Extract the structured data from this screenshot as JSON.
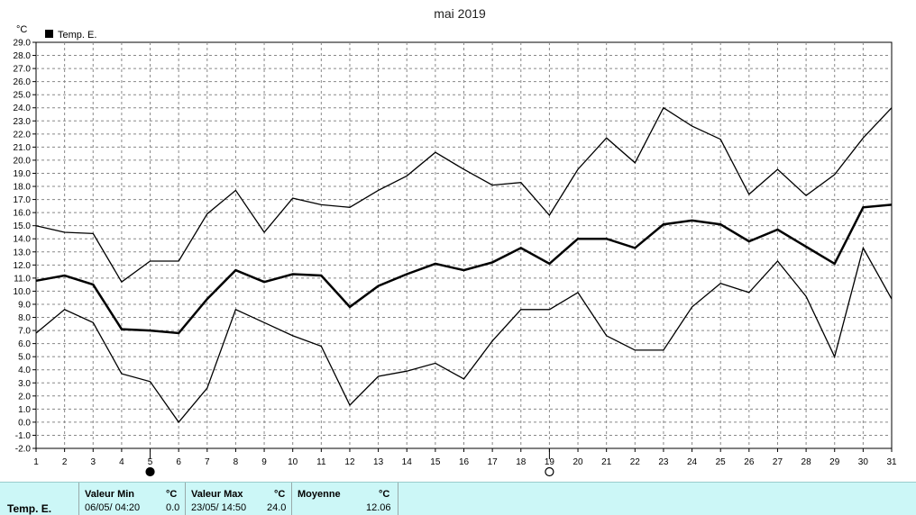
{
  "chart_data": {
    "type": "line",
    "title": "mai 2019",
    "ylabel": "°C",
    "xlabel": "",
    "ylim": [
      -2.0,
      29.0
    ],
    "xlim": [
      1,
      31
    ],
    "grid": true,
    "legend_position": "top-left",
    "x": [
      1,
      2,
      3,
      4,
      5,
      6,
      7,
      8,
      9,
      10,
      11,
      12,
      13,
      14,
      15,
      16,
      17,
      18,
      19,
      20,
      21,
      22,
      23,
      24,
      25,
      26,
      27,
      28,
      29,
      30,
      31
    ],
    "x_tick_labels": [
      "1",
      "2",
      "3",
      "4",
      "5",
      "6",
      "7",
      "8",
      "9",
      "10",
      "11",
      "12",
      "13",
      "14",
      "15",
      "16",
      "17",
      "18",
      "19",
      "20",
      "21",
      "22",
      "23",
      "24",
      "25",
      "26",
      "27",
      "28",
      "29",
      "30",
      "31"
    ],
    "y_tick_labels": [
      "29.0",
      "28.0",
      "27.0",
      "26.0",
      "25.0",
      "24.0",
      "23.0",
      "22.0",
      "21.0",
      "20.0",
      "19.0",
      "18.0",
      "17.0",
      "16.0",
      "15.0",
      "14.0",
      "13.0",
      "12.0",
      "11.0",
      "10.0",
      "9.0",
      "8.0",
      "7.0",
      "6.0",
      "5.0",
      "4.0",
      "3.0",
      "2.0",
      "1.0",
      "0.0",
      "-1.0",
      "-2.0"
    ],
    "series": [
      {
        "name": "Temp. E.",
        "role": "max",
        "color": "#000000",
        "values": [
          15.0,
          14.5,
          14.4,
          10.7,
          12.3,
          12.3,
          15.9,
          17.7,
          14.5,
          17.1,
          16.6,
          16.4,
          17.7,
          18.8,
          20.6,
          19.3,
          18.1,
          18.3,
          15.8,
          19.3,
          21.7,
          19.8,
          24.0,
          22.6,
          21.6,
          17.4,
          19.3,
          17.3,
          18.9,
          21.7,
          24.0
        ]
      },
      {
        "name": "Temp. E.",
        "role": "mean",
        "color": "#000000",
        "values": [
          10.8,
          11.2,
          10.5,
          7.1,
          7.0,
          6.8,
          9.4,
          11.6,
          10.7,
          11.3,
          11.2,
          8.8,
          10.4,
          11.3,
          12.1,
          11.6,
          12.2,
          13.3,
          12.1,
          14.0,
          14.0,
          13.3,
          15.1,
          15.4,
          15.1,
          13.8,
          14.7,
          13.4,
          12.1,
          16.4,
          16.6
        ]
      },
      {
        "name": "Temp. E.",
        "role": "min",
        "color": "#000000",
        "values": [
          6.8,
          8.6,
          7.6,
          3.7,
          3.1,
          0.0,
          2.6,
          8.6,
          7.6,
          6.6,
          5.8,
          1.3,
          3.5,
          3.9,
          4.5,
          3.3,
          6.2,
          8.6,
          8.6,
          9.9,
          6.6,
          5.5,
          5.5,
          8.8,
          10.6,
          9.9,
          12.3,
          9.6,
          5.0,
          13.3,
          9.4
        ]
      }
    ],
    "legend": [
      {
        "label": "Temp. E.",
        "color": "#000000"
      }
    ],
    "moon_phases": [
      {
        "day": 5,
        "phase": "new-moon"
      },
      {
        "day": 19,
        "phase": "full-moon"
      }
    ]
  },
  "stats": {
    "row_label": "Temp. E.",
    "min_header": "Valeur Min",
    "max_header": "Valeur Max",
    "avg_header": "Moyenne",
    "unit": "°C",
    "min_when": "06/05/  04:20",
    "min_value": "0.0",
    "max_when": "23/05/  14:50",
    "max_value": "24.0",
    "avg_value": "12.06"
  }
}
